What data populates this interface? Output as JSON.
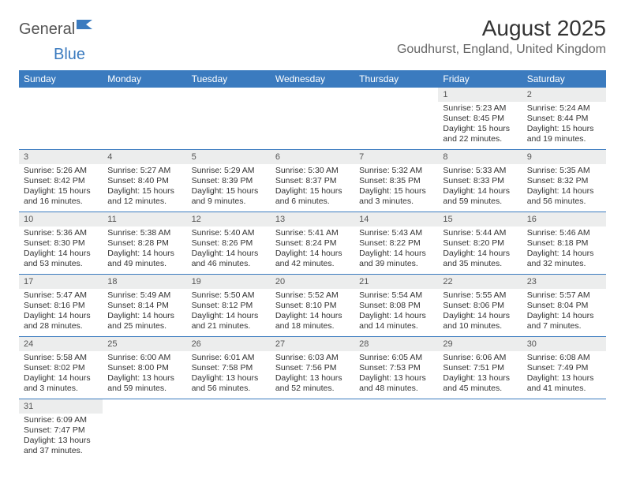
{
  "logo": {
    "text1": "General",
    "text2": "Blue"
  },
  "title": "August 2025",
  "location": "Goudhurst, England, United Kingdom",
  "header_bg": "#3b7bbf",
  "daybar_bg": "#eceded",
  "days_of_week": [
    "Sunday",
    "Monday",
    "Tuesday",
    "Wednesday",
    "Thursday",
    "Friday",
    "Saturday"
  ],
  "weeks": [
    [
      null,
      null,
      null,
      null,
      null,
      {
        "n": "1",
        "sr": "Sunrise: 5:23 AM",
        "ss": "Sunset: 8:45 PM",
        "dl": "Daylight: 15 hours and 22 minutes."
      },
      {
        "n": "2",
        "sr": "Sunrise: 5:24 AM",
        "ss": "Sunset: 8:44 PM",
        "dl": "Daylight: 15 hours and 19 minutes."
      }
    ],
    [
      {
        "n": "3",
        "sr": "Sunrise: 5:26 AM",
        "ss": "Sunset: 8:42 PM",
        "dl": "Daylight: 15 hours and 16 minutes."
      },
      {
        "n": "4",
        "sr": "Sunrise: 5:27 AM",
        "ss": "Sunset: 8:40 PM",
        "dl": "Daylight: 15 hours and 12 minutes."
      },
      {
        "n": "5",
        "sr": "Sunrise: 5:29 AM",
        "ss": "Sunset: 8:39 PM",
        "dl": "Daylight: 15 hours and 9 minutes."
      },
      {
        "n": "6",
        "sr": "Sunrise: 5:30 AM",
        "ss": "Sunset: 8:37 PM",
        "dl": "Daylight: 15 hours and 6 minutes."
      },
      {
        "n": "7",
        "sr": "Sunrise: 5:32 AM",
        "ss": "Sunset: 8:35 PM",
        "dl": "Daylight: 15 hours and 3 minutes."
      },
      {
        "n": "8",
        "sr": "Sunrise: 5:33 AM",
        "ss": "Sunset: 8:33 PM",
        "dl": "Daylight: 14 hours and 59 minutes."
      },
      {
        "n": "9",
        "sr": "Sunrise: 5:35 AM",
        "ss": "Sunset: 8:32 PM",
        "dl": "Daylight: 14 hours and 56 minutes."
      }
    ],
    [
      {
        "n": "10",
        "sr": "Sunrise: 5:36 AM",
        "ss": "Sunset: 8:30 PM",
        "dl": "Daylight: 14 hours and 53 minutes."
      },
      {
        "n": "11",
        "sr": "Sunrise: 5:38 AM",
        "ss": "Sunset: 8:28 PM",
        "dl": "Daylight: 14 hours and 49 minutes."
      },
      {
        "n": "12",
        "sr": "Sunrise: 5:40 AM",
        "ss": "Sunset: 8:26 PM",
        "dl": "Daylight: 14 hours and 46 minutes."
      },
      {
        "n": "13",
        "sr": "Sunrise: 5:41 AM",
        "ss": "Sunset: 8:24 PM",
        "dl": "Daylight: 14 hours and 42 minutes."
      },
      {
        "n": "14",
        "sr": "Sunrise: 5:43 AM",
        "ss": "Sunset: 8:22 PM",
        "dl": "Daylight: 14 hours and 39 minutes."
      },
      {
        "n": "15",
        "sr": "Sunrise: 5:44 AM",
        "ss": "Sunset: 8:20 PM",
        "dl": "Daylight: 14 hours and 35 minutes."
      },
      {
        "n": "16",
        "sr": "Sunrise: 5:46 AM",
        "ss": "Sunset: 8:18 PM",
        "dl": "Daylight: 14 hours and 32 minutes."
      }
    ],
    [
      {
        "n": "17",
        "sr": "Sunrise: 5:47 AM",
        "ss": "Sunset: 8:16 PM",
        "dl": "Daylight: 14 hours and 28 minutes."
      },
      {
        "n": "18",
        "sr": "Sunrise: 5:49 AM",
        "ss": "Sunset: 8:14 PM",
        "dl": "Daylight: 14 hours and 25 minutes."
      },
      {
        "n": "19",
        "sr": "Sunrise: 5:50 AM",
        "ss": "Sunset: 8:12 PM",
        "dl": "Daylight: 14 hours and 21 minutes."
      },
      {
        "n": "20",
        "sr": "Sunrise: 5:52 AM",
        "ss": "Sunset: 8:10 PM",
        "dl": "Daylight: 14 hours and 18 minutes."
      },
      {
        "n": "21",
        "sr": "Sunrise: 5:54 AM",
        "ss": "Sunset: 8:08 PM",
        "dl": "Daylight: 14 hours and 14 minutes."
      },
      {
        "n": "22",
        "sr": "Sunrise: 5:55 AM",
        "ss": "Sunset: 8:06 PM",
        "dl": "Daylight: 14 hours and 10 minutes."
      },
      {
        "n": "23",
        "sr": "Sunrise: 5:57 AM",
        "ss": "Sunset: 8:04 PM",
        "dl": "Daylight: 14 hours and 7 minutes."
      }
    ],
    [
      {
        "n": "24",
        "sr": "Sunrise: 5:58 AM",
        "ss": "Sunset: 8:02 PM",
        "dl": "Daylight: 14 hours and 3 minutes."
      },
      {
        "n": "25",
        "sr": "Sunrise: 6:00 AM",
        "ss": "Sunset: 8:00 PM",
        "dl": "Daylight: 13 hours and 59 minutes."
      },
      {
        "n": "26",
        "sr": "Sunrise: 6:01 AM",
        "ss": "Sunset: 7:58 PM",
        "dl": "Daylight: 13 hours and 56 minutes."
      },
      {
        "n": "27",
        "sr": "Sunrise: 6:03 AM",
        "ss": "Sunset: 7:56 PM",
        "dl": "Daylight: 13 hours and 52 minutes."
      },
      {
        "n": "28",
        "sr": "Sunrise: 6:05 AM",
        "ss": "Sunset: 7:53 PM",
        "dl": "Daylight: 13 hours and 48 minutes."
      },
      {
        "n": "29",
        "sr": "Sunrise: 6:06 AM",
        "ss": "Sunset: 7:51 PM",
        "dl": "Daylight: 13 hours and 45 minutes."
      },
      {
        "n": "30",
        "sr": "Sunrise: 6:08 AM",
        "ss": "Sunset: 7:49 PM",
        "dl": "Daylight: 13 hours and 41 minutes."
      }
    ],
    [
      {
        "n": "31",
        "sr": "Sunrise: 6:09 AM",
        "ss": "Sunset: 7:47 PM",
        "dl": "Daylight: 13 hours and 37 minutes."
      },
      null,
      null,
      null,
      null,
      null,
      null
    ]
  ]
}
